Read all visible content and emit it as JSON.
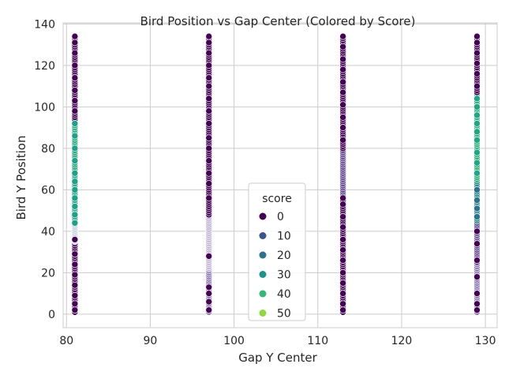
{
  "chart_data": {
    "type": "scatter",
    "title": "Bird Position vs Gap Center (Colored by Score)",
    "xlabel": "Gap Y Center",
    "ylabel": "Bird Y Position",
    "xlim": [
      79.6,
      131.4
    ],
    "ylim": [
      -6.5,
      140.5
    ],
    "xticks": [
      80,
      90,
      100,
      110,
      120,
      130
    ],
    "yticks": [
      0,
      20,
      40,
      60,
      80,
      100,
      120,
      140
    ],
    "grid": true,
    "color_scale": "viridis",
    "legend": {
      "title": "score",
      "placement": "lower-center",
      "entries": [
        {
          "label": "0",
          "color": "#440154"
        },
        {
          "label": "10",
          "color": "#3b528b"
        },
        {
          "label": "20",
          "color": "#2c728e"
        },
        {
          "label": "30",
          "color": "#21918c"
        },
        {
          "label": "40",
          "color": "#35b779"
        },
        {
          "label": "50",
          "color": "#90d743"
        }
      ]
    },
    "series": [
      {
        "x": 81,
        "segments": [
          {
            "y": [
              1,
              34
            ],
            "color": "#440154"
          },
          {
            "y": [
              35,
              45
            ],
            "color": "#c5d6e0"
          },
          {
            "y": [
              45,
              93
            ],
            "color": "#29a884"
          },
          {
            "y": [
              94,
              134
            ],
            "color": "#440154"
          }
        ]
      },
      {
        "x": 97,
        "segments": [
          {
            "y": [
              1,
              22
            ],
            "color": "#8e79b2"
          },
          {
            "y": [
              22,
              48
            ],
            "color": "#c2b6d8"
          },
          {
            "y": [
              48,
              134
            ],
            "color": "#440154"
          }
        ]
      },
      {
        "x": 113,
        "segments": [
          {
            "y": [
              1,
              58
            ],
            "color": "#440154"
          },
          {
            "y": [
              58,
              80
            ],
            "color": "#6a4c93"
          },
          {
            "y": [
              80,
              134
            ],
            "color": "#440154"
          }
        ]
      },
      {
        "x": 129,
        "segments": [
          {
            "y": [
              1,
              25
            ],
            "color": "#8e79b2"
          },
          {
            "y": [
              25,
              45
            ],
            "color": "#6a4c93"
          },
          {
            "y": [
              45,
              65
            ],
            "color": "#2c8a8c"
          },
          {
            "y": [
              65,
              107
            ],
            "color": "#2eb07f"
          },
          {
            "y": [
              107,
              134
            ],
            "color": "#440154"
          }
        ]
      }
    ],
    "highlights": [
      {
        "x": 81,
        "y": [
          2,
          5,
          9,
          14,
          19,
          24,
          29,
          36,
          98,
          103,
          108,
          114,
          120,
          126,
          131,
          134
        ],
        "color": "#440154"
      },
      {
        "x": 81,
        "y": [
          44,
          48,
          52,
          56,
          60,
          64,
          68,
          74,
          80,
          86,
          92
        ],
        "color": "#1f9e89"
      },
      {
        "x": 97,
        "y": [
          2,
          6,
          10,
          13,
          28,
          56,
          63,
          68,
          74,
          80,
          85,
          92,
          98,
          104,
          110,
          114,
          120,
          126,
          131,
          134
        ],
        "color": "#440154"
      },
      {
        "x": 113,
        "y": [
          2,
          5,
          10,
          15,
          20,
          26,
          31,
          36,
          42,
          47,
          53,
          56,
          84,
          90,
          95,
          101,
          107,
          112,
          118,
          123,
          129,
          134
        ],
        "color": "#440154"
      },
      {
        "x": 129,
        "y": [
          2,
          5,
          10,
          18,
          26,
          34,
          40,
          110,
          116,
          121,
          126,
          131,
          134
        ],
        "color": "#440154"
      },
      {
        "x": 129,
        "y": [
          47,
          51,
          55,
          60
        ],
        "color": "#2c728e"
      },
      {
        "x": 129,
        "y": [
          68,
          73,
          78,
          84,
          88,
          92,
          96,
          100,
          104
        ],
        "color": "#21a585"
      }
    ]
  }
}
